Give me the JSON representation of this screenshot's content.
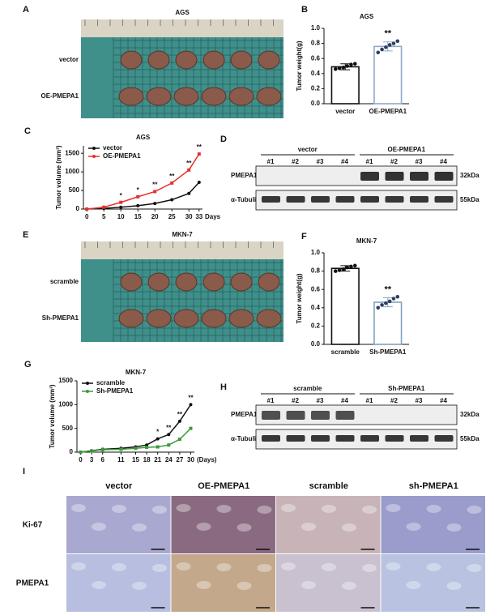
{
  "panels": {
    "A": {
      "letter": "A",
      "title": "AGS",
      "rows": [
        "vector",
        "OE-PMEPA1"
      ]
    },
    "E": {
      "letter": "E",
      "title": "MKN-7",
      "rows": [
        "scramble",
        "Sh-PMEPA1"
      ]
    },
    "D": {
      "letter": "D",
      "groups": [
        "vector",
        "OE-PMEPA1"
      ],
      "lanes": [
        "#1",
        "#2",
        "#3",
        "#4",
        "#1",
        "#2",
        "#3",
        "#4"
      ],
      "rows": [
        "PMEPA1",
        "α-Tubulin"
      ],
      "sizes": [
        "32kDa",
        "55kDa"
      ]
    },
    "H": {
      "letter": "H",
      "groups": [
        "scramble",
        "Sh-PMEPA1"
      ],
      "lanes": [
        "#1",
        "#2",
        "#3",
        "#4",
        "#1",
        "#2",
        "#3",
        "#4"
      ],
      "rows": [
        "PMEPA1",
        "α-Tubulin"
      ],
      "sizes": [
        "32kDa",
        "55kDa"
      ]
    },
    "I": {
      "letter": "I",
      "columns": [
        "vector",
        "OE-PMEPA1",
        "scramble",
        "sh-PMEPA1"
      ],
      "rows": [
        "Ki-67",
        "PMEPA1"
      ]
    }
  },
  "chart_data": [
    {
      "type": "bar",
      "panel": "B",
      "title": "AGS",
      "y_label": "Tumor weight(g)",
      "categories": [
        "vector",
        "OE-PMEPA1"
      ],
      "values": [
        0.49,
        0.76
      ],
      "errors": [
        0.04,
        0.06
      ],
      "points": [
        [
          0.46,
          0.47,
          0.48,
          0.5,
          0.52,
          0.53
        ],
        [
          0.68,
          0.72,
          0.75,
          0.78,
          0.8,
          0.83
        ]
      ],
      "colors": [
        "#111111",
        "#8fa8c8"
      ],
      "annotation": "**",
      "ylim": [
        0,
        1.0
      ],
      "yticks": [
        {
          "value": 0,
          "label": "0.0"
        },
        0.2,
        0.4,
        0.6,
        0.8,
        {
          "value": 1.0,
          "label": "1.0"
        }
      ]
    },
    {
      "type": "line",
      "panel": "C",
      "title": "AGS",
      "y_label": "Tumor volume (mm³)",
      "x_label": "Days",
      "x": [
        0,
        5,
        10,
        15,
        20,
        25,
        30,
        33
      ],
      "series": [
        {
          "name": "vector",
          "color": "#111111",
          "values": [
            0,
            20,
            50,
            90,
            150,
            250,
            420,
            720
          ]
        },
        {
          "name": "OE-PMEPA1",
          "color": "#e8302a",
          "values": [
            0,
            50,
            180,
            330,
            470,
            700,
            1050,
            1480
          ]
        }
      ],
      "annotations": [
        {
          "x": 10,
          "text": "*"
        },
        {
          "x": 15,
          "text": "*"
        },
        {
          "x": 20,
          "text": "**"
        },
        {
          "x": 25,
          "text": "**"
        },
        {
          "x": 30,
          "text": "**"
        },
        {
          "x": 33,
          "text": "**"
        }
      ],
      "xlim": [
        -1,
        34
      ],
      "xticks": [
        0,
        5,
        10,
        15,
        20,
        25,
        30,
        33
      ],
      "ylim": [
        0,
        1700
      ],
      "yticks": [
        0,
        500,
        1000,
        1500
      ]
    },
    {
      "type": "bar",
      "panel": "F",
      "title": "MKN-7",
      "y_label": "Tumor weight(g)",
      "categories": [
        "scramble",
        "Sh-PMEPA1"
      ],
      "values": [
        0.83,
        0.46
      ],
      "errors": [
        0.03,
        0.05
      ],
      "points": [
        [
          0.8,
          0.81,
          0.82,
          0.84,
          0.85,
          0.86
        ],
        [
          0.4,
          0.43,
          0.45,
          0.47,
          0.5,
          0.52
        ]
      ],
      "colors": [
        "#111111",
        "#7fa2c0"
      ],
      "annotation": "**",
      "ylim": [
        0,
        1.0
      ],
      "yticks": [
        {
          "value": 0,
          "label": "0.0"
        },
        0.2,
        0.4,
        0.6,
        0.8,
        {
          "value": 1.0,
          "label": "1.0"
        }
      ]
    },
    {
      "type": "line",
      "panel": "G",
      "title": "MKN-7",
      "y_label": "Tumor volume (mm³)",
      "x_label": "(Days)",
      "x": [
        0,
        3,
        6,
        11,
        15,
        18,
        21,
        24,
        27,
        30
      ],
      "series": [
        {
          "name": "scramble",
          "color": "#111111",
          "values": [
            0,
            30,
            60,
            80,
            110,
            150,
            280,
            370,
            650,
            1000
          ]
        },
        {
          "name": "Sh-PMEPA1",
          "color": "#3a9a3a",
          "values": [
            0,
            25,
            50,
            60,
            80,
            100,
            110,
            150,
            270,
            500
          ]
        }
      ],
      "annotations": [
        {
          "x": 21,
          "text": "*"
        },
        {
          "x": 24,
          "text": "**"
        },
        {
          "x": 27,
          "text": "**"
        },
        {
          "x": 30,
          "text": "**"
        }
      ],
      "xlim": [
        -1,
        31
      ],
      "xticks": [
        0,
        3,
        6,
        11,
        15,
        18,
        21,
        24,
        27,
        30
      ],
      "ylim": [
        0,
        1500
      ],
      "yticks": [
        0,
        500,
        1000,
        1500
      ]
    }
  ]
}
